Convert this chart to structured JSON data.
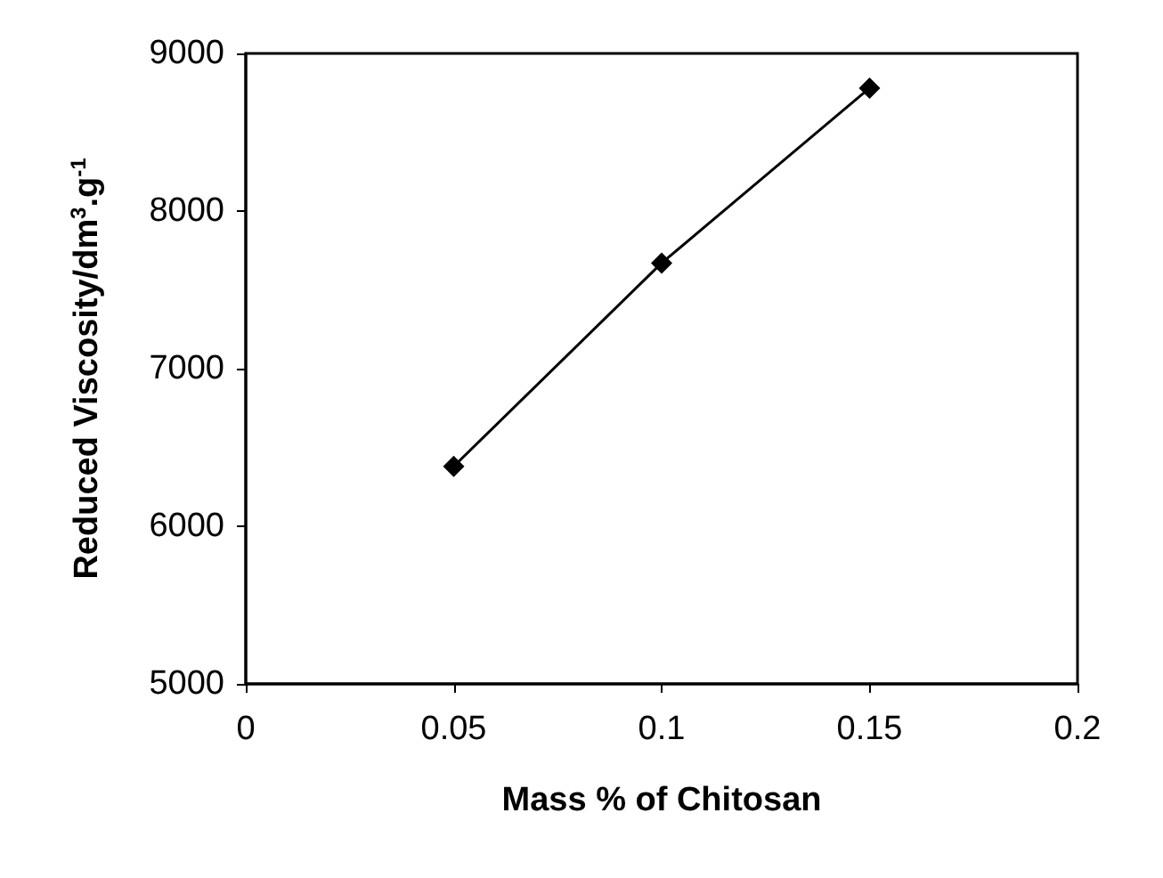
{
  "chart_data": {
    "type": "line",
    "xlabel": "Mass % of Chitosan",
    "ylabel": "Reduced Viscosity/dm$^{3}$.g$^{-1}$",
    "x": [
      0.05,
      0.1,
      0.15
    ],
    "series": [
      {
        "color": "#000000",
        "values": [
          6380,
          7670,
          8780
        ]
      }
    ],
    "xlim": [
      0,
      0.2
    ],
    "xticks": [
      0,
      0.05,
      0.1,
      0.15,
      0.2
    ],
    "ylim": [
      5000,
      9000
    ],
    "yticks": [
      5000,
      6000,
      7000,
      8000,
      9000
    ],
    "grid": false,
    "marker": "diamond",
    "line_style": "solid"
  }
}
